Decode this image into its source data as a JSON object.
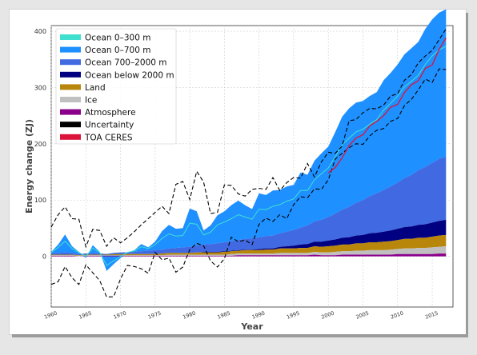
{
  "colors": {
    "ocean_0_300": "#40e0d0",
    "ocean_0_700": "#1e90ff",
    "ocean_700_2000": "#4169e1",
    "ocean_below_2000": "#000080",
    "land": "#b8860b",
    "ice": "#c0c0c0",
    "atmosphere": "#8b008b",
    "uncertainty": "#000000",
    "toa_ceres": "#dc143c"
  },
  "chart_data": {
    "type": "area",
    "title": "",
    "xlabel": "Year",
    "ylabel": "Energy change (ZJ)",
    "xlim": [
      1960,
      2018
    ],
    "ylim": [
      -90,
      410
    ],
    "xticks": [
      1960,
      1965,
      1970,
      1975,
      1980,
      1985,
      1990,
      1995,
      2000,
      2005,
      2010,
      2015
    ],
    "yticks": [
      0,
      100,
      200,
      300,
      400
    ],
    "grid": true,
    "legend_position": "top-left",
    "legend": [
      "Ocean 0–300 m",
      "Ocean 0–700 m",
      "Ocean 700–2000 m",
      "Ocean below 2000 m",
      "Land",
      "Ice",
      "Atmosphere",
      "Uncertainty",
      "TOA CERES"
    ],
    "x": [
      1960,
      1961,
      1962,
      1963,
      1964,
      1965,
      1966,
      1967,
      1968,
      1969,
      1970,
      1971,
      1972,
      1973,
      1974,
      1975,
      1976,
      1977,
      1978,
      1979,
      1980,
      1981,
      1982,
      1983,
      1984,
      1985,
      1986,
      1987,
      1988,
      1989,
      1990,
      1991,
      1992,
      1993,
      1994,
      1995,
      1996,
      1997,
      1998,
      1999,
      2000,
      2001,
      2002,
      2003,
      2004,
      2005,
      2006,
      2007,
      2008,
      2009,
      2010,
      2011,
      2012,
      2013,
      2014,
      2015,
      2016,
      2017
    ],
    "series": [
      {
        "name": "Atmosphere",
        "values": [
          1,
          1,
          1,
          1,
          0,
          1,
          1,
          1,
          1,
          1,
          1,
          1,
          1,
          1,
          1,
          1,
          1,
          1,
          1,
          1,
          1,
          1,
          1,
          1,
          1,
          1,
          1,
          2,
          2,
          2,
          2,
          2,
          2,
          2,
          2,
          2,
          2,
          2,
          3,
          2,
          2,
          2,
          3,
          3,
          3,
          3,
          3,
          3,
          3,
          3,
          4,
          4,
          4,
          4,
          4,
          4,
          5,
          5
        ]
      },
      {
        "name": "Ice",
        "values": [
          1,
          1,
          1,
          1,
          1,
          1,
          1,
          1,
          1,
          1,
          1,
          1,
          1,
          1,
          1,
          1,
          1,
          2,
          2,
          2,
          2,
          2,
          2,
          2,
          2,
          2,
          3,
          3,
          3,
          3,
          3,
          3,
          3,
          4,
          4,
          4,
          4,
          4,
          5,
          5,
          5,
          6,
          6,
          6,
          7,
          7,
          8,
          8,
          8,
          9,
          9,
          10,
          10,
          11,
          11,
          12,
          12,
          13
        ]
      },
      {
        "name": "Land",
        "values": [
          1,
          1,
          1,
          1,
          1,
          1,
          1,
          1,
          1,
          2,
          2,
          2,
          2,
          2,
          2,
          2,
          3,
          3,
          3,
          3,
          3,
          4,
          4,
          4,
          4,
          5,
          5,
          5,
          6,
          6,
          6,
          7,
          7,
          8,
          8,
          8,
          9,
          9,
          10,
          10,
          11,
          11,
          12,
          12,
          13,
          13,
          14,
          14,
          15,
          15,
          16,
          17,
          17,
          18,
          18,
          19,
          20,
          20
        ]
      },
      {
        "name": "Ocean below 2000 m",
        "values": [
          0,
          0,
          0,
          0,
          0,
          0,
          0,
          0,
          0,
          0,
          0,
          0,
          0,
          0,
          0,
          0,
          0,
          0,
          0,
          0,
          0,
          0,
          1,
          1,
          1,
          1,
          1,
          1,
          1,
          1,
          2,
          2,
          2,
          3,
          4,
          5,
          6,
          7,
          8,
          9,
          10,
          11,
          12,
          13,
          14,
          15,
          16,
          17,
          18,
          19,
          20,
          21,
          22,
          23,
          24,
          25,
          26,
          27
        ]
      },
      {
        "name": "Ocean 700–2000 m",
        "values": [
          2,
          3,
          4,
          3,
          2,
          2,
          3,
          2,
          1,
          2,
          3,
          3,
          4,
          5,
          6,
          7,
          7,
          8,
          9,
          10,
          11,
          12,
          13,
          14,
          15,
          16,
          17,
          18,
          19,
          20,
          21,
          22,
          23,
          24,
          26,
          28,
          30,
          33,
          36,
          39,
          42,
          46,
          50,
          54,
          58,
          62,
          66,
          70,
          74,
          78,
          82,
          87,
          92,
          97,
          102,
          106,
          110,
          112
        ]
      },
      {
        "name": "Ocean 0–700 m",
        "values": [
          3,
          15,
          32,
          12,
          4,
          -8,
          14,
          3,
          -30,
          -20,
          -10,
          0,
          3,
          13,
          6,
          15,
          33,
          42,
          34,
          34,
          68,
          61,
          25,
          33,
          50,
          55,
          64,
          70,
          60,
          52,
          78,
          73,
          80,
          77,
          80,
          80,
          98,
          90,
          108,
          118,
          125,
          145,
          165,
          175,
          178,
          176,
          178,
          180,
          195,
          202,
          210,
          220,
          225,
          228,
          245,
          255,
          260,
          262
        ]
      },
      {
        "name": "Ocean 0–300 m",
        "values": [
          2,
          10,
          20,
          8,
          3,
          -5,
          9,
          2,
          -20,
          -14,
          -7,
          0,
          2,
          8,
          4,
          10,
          20,
          26,
          21,
          21,
          42,
          38,
          17,
          21,
          33,
          36,
          40,
          45,
          39,
          34,
          50,
          47,
          52,
          51,
          54,
          55,
          66,
          62,
          74,
          82,
          87,
          101,
          115,
          122,
          126,
          126,
          128,
          131,
          142,
          148,
          154,
          162,
          166,
          169,
          182,
          190,
          194,
          196
        ],
        "line": true
      }
    ],
    "toa_ceres": {
      "x": [
        2000,
        2001,
        2002,
        2003,
        2004,
        2005,
        2006,
        2007,
        2008,
        2009,
        2010,
        2011,
        2012,
        2013,
        2014,
        2015,
        2016,
        2017
      ],
      "values": [
        148,
        158,
        175,
        197,
        210,
        216,
        232,
        240,
        250,
        265,
        270,
        291,
        305,
        312,
        334,
        340,
        368,
        388
      ]
    },
    "uncertainty_upper": [
      52,
      74,
      88,
      67,
      66,
      17,
      48,
      46,
      18,
      33,
      24,
      33,
      44,
      56,
      67,
      78,
      89,
      76,
      128,
      133,
      101,
      151,
      132,
      76,
      78,
      127,
      126,
      111,
      107,
      119,
      121,
      119,
      140,
      117,
      131,
      140,
      139,
      165,
      141,
      168,
      185,
      183,
      196,
      241,
      243,
      255,
      263,
      262,
      269,
      285,
      289,
      313,
      323,
      344,
      356,
      366,
      385,
      404
    ],
    "uncertainty_lower": [
      -50,
      -45,
      -18,
      -38,
      -50,
      -15,
      -29,
      -43,
      -72,
      -72,
      -40,
      -16,
      -18,
      -22,
      -30,
      7,
      -6,
      -3,
      -28,
      -19,
      12,
      23,
      19,
      -8,
      -19,
      -4,
      34,
      26,
      29,
      21,
      57,
      68,
      62,
      74,
      67,
      92,
      106,
      104,
      120,
      119,
      136,
      173,
      183,
      193,
      200,
      199,
      214,
      224,
      227,
      240,
      245,
      268,
      279,
      296,
      315,
      309,
      333,
      332
    ]
  }
}
